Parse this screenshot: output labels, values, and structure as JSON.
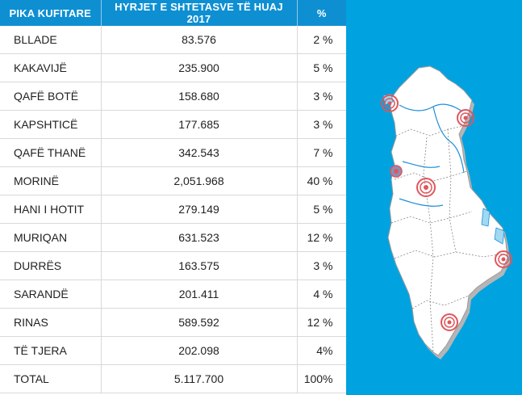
{
  "table": {
    "headers": [
      "PIKA KUFITARE",
      "HYRJET E SHTETASVE TË HUAJ 2017",
      "%"
    ],
    "rows": [
      [
        "BLLADE",
        "83.576",
        "2 %"
      ],
      [
        "KAKAVIJË",
        "235.900",
        "5 %"
      ],
      [
        "QAFË BOTË",
        "158.680",
        "3 %"
      ],
      [
        "KAPSHTICË",
        "177.685",
        "3 %"
      ],
      [
        "QAFË THANË",
        "342.543",
        "7 %"
      ],
      [
        "MORINË",
        "2,051.968",
        "40 %"
      ],
      [
        "HANI I HOTIT",
        "279.149",
        "5 %"
      ],
      [
        "MURIQAN",
        "631.523",
        "12 %"
      ],
      [
        "DURRËS",
        "163.575",
        "3 %"
      ],
      [
        "SARANDË",
        "201.411",
        "4 %"
      ],
      [
        "RINAS",
        "589.592",
        "12 %"
      ],
      [
        "TË TJERA",
        "202.098",
        "4%"
      ],
      [
        "TOTAL",
        "5.117.700",
        "100%"
      ]
    ]
  },
  "map": {
    "background_color": "#00a3e0",
    "country_fill": "#ffffff",
    "border_color": "#b5b5b5",
    "river_color": "#1f8fd6",
    "marker_color": "#e0565b",
    "marker_icon": "target-marker-icon"
  }
}
